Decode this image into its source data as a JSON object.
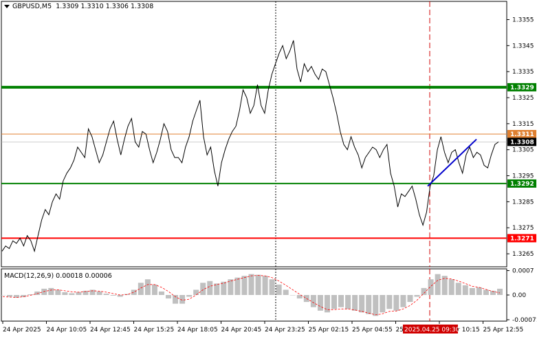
{
  "header": {
    "symbol_tf": "GBPUSD,M5",
    "ohlc": "1.3309 1.3310 1.3306 1.3308"
  },
  "macd": {
    "label": "MACD(12,26,9) 0.00018 0.00006",
    "axis_labels": [
      "0.0007",
      "0.00",
      "-0.00071"
    ]
  },
  "colors": {
    "price_line": "#000000",
    "support_level": "#008000",
    "resistance_level": "#ff0000",
    "current_price_level": "#e08030",
    "trend_line": "#0000cc",
    "event_marker": "#d00000",
    "macd_hist": "#c0c0c0",
    "macd_signal": "#ff0000"
  },
  "time_axis": {
    "labels": [
      "24 Apr 2025",
      "24 Apr 10:05",
      "24 Apr 12:45",
      "24 Apr 15:25",
      "24 Apr 18:05",
      "24 Apr 20:45",
      "24 Apr 23:25",
      "25 Apr 02:15",
      "25 Apr 04:55",
      "25 Apr 07:35",
      "25 Apr 10:15",
      "25 Apr 12:55"
    ],
    "highlight": "2025.04.25 09:30"
  },
  "chart_data": {
    "type": "line",
    "symbol": "GBPUSD",
    "timeframe": "M5",
    "price_ticks": [
      "1.3355",
      "1.3345",
      "1.3335",
      "1.3325",
      "1.3315",
      "1.3305",
      "1.3295",
      "1.3285",
      "1.3275",
      "1.3265"
    ],
    "price_tags": [
      {
        "text": "1.3329",
        "value": 1.3329,
        "color": "#008000"
      },
      {
        "text": "1.3311",
        "value": 1.3311,
        "color": "#e08030"
      },
      {
        "text": "1.3308",
        "value": 1.3308,
        "color": "#000000"
      },
      {
        "text": "1.3292",
        "value": 1.3292,
        "color": "#008000"
      },
      {
        "text": "1.3271",
        "value": 1.3271,
        "color": "#ff0000"
      }
    ],
    "levels": [
      {
        "value": 1.3329,
        "color": "#008000",
        "width": 4
      },
      {
        "value": 1.3311,
        "color": "#e08030",
        "width": 1
      },
      {
        "value": 1.3292,
        "color": "#008000",
        "width": 2
      },
      {
        "value": 1.3271,
        "color": "#ff0000",
        "width": 2
      }
    ],
    "ylim": [
      1.326,
      1.3362
    ],
    "series": [
      {
        "values": [
          1.3266,
          1.3268,
          1.3267,
          1.327,
          1.3269,
          1.3271,
          1.3268,
          1.3272,
          1.327,
          1.3266,
          1.3272,
          1.3278,
          1.3282,
          1.328,
          1.3285,
          1.3288,
          1.3286,
          1.3293,
          1.3296,
          1.3298,
          1.3301,
          1.3306,
          1.3304,
          1.3302,
          1.3313,
          1.331,
          1.3305,
          1.33,
          1.3303,
          1.3308,
          1.3313,
          1.3316,
          1.3309,
          1.3303,
          1.3309,
          1.3314,
          1.3317,
          1.3308,
          1.3306,
          1.3312,
          1.3311,
          1.3305,
          1.33,
          1.3304,
          1.3309,
          1.3315,
          1.3312,
          1.3305,
          1.3302,
          1.3302,
          1.33,
          1.3306,
          1.331,
          1.3316,
          1.332,
          1.3324,
          1.331,
          1.3303,
          1.3306,
          1.3297,
          1.3291,
          1.33,
          1.3305,
          1.3309,
          1.3312,
          1.3314,
          1.332,
          1.3328,
          1.3325,
          1.3319,
          1.3322,
          1.333,
          1.3322,
          1.3319,
          1.3328,
          1.3334,
          1.3338,
          1.3342,
          1.3345,
          1.334,
          1.3343,
          1.3347,
          1.3336,
          1.3331,
          1.3338,
          1.3335,
          1.3337,
          1.3334,
          1.3332,
          1.3336,
          1.3335,
          1.333,
          1.3325,
          1.3319,
          1.3312,
          1.3307,
          1.3305,
          1.331,
          1.3306,
          1.3303,
          1.3298,
          1.3302,
          1.3304,
          1.3306,
          1.3305,
          1.3302,
          1.3305,
          1.3307,
          1.3296,
          1.3291,
          1.3283,
          1.3288,
          1.3287,
          1.3289,
          1.3291,
          1.3286,
          1.328,
          1.3276,
          1.3281,
          1.3291,
          1.3295,
          1.3305,
          1.331,
          1.3304,
          1.33,
          1.3304,
          1.3305,
          1.33,
          1.3296,
          1.3303,
          1.3306,
          1.3302,
          1.3304,
          1.3303,
          1.3299,
          1.3298,
          1.3303,
          1.3307,
          1.3308
        ]
      },
      {
        "name": "trend",
        "values": [
          1.3291,
          1.3309
        ]
      }
    ],
    "macd": {
      "histogram": [
        0.0,
        -5e-05,
        -8e-05,
        -6e-05,
        2e-05,
        0.0001,
        0.00018,
        0.0002,
        0.00015,
        8e-05,
        5e-05,
        8e-05,
        0.00012,
        0.00015,
        0.0001,
        4e-05,
        -2e-05,
        -5e-05,
        3e-05,
        0.00015,
        0.00035,
        0.00045,
        0.0003,
        0.0001,
        -0.0001,
        -0.00025,
        -0.00025,
        -5e-05,
        0.00015,
        0.00035,
        0.0004,
        0.00033,
        0.00038,
        0.00045,
        0.0005,
        0.00055,
        0.0006,
        0.00058,
        0.00055,
        0.00045,
        0.0003,
        0.00015,
        0.0,
        -0.0001,
        -0.0002,
        -0.00035,
        -0.00045,
        -0.0005,
        -0.0004,
        -0.00035,
        -0.0004,
        -0.00045,
        -0.0005,
        -0.00055,
        -0.0006,
        -0.0005,
        -0.0004,
        -0.00045,
        -0.00035,
        -0.0002,
        -5e-05,
        0.0002,
        0.00045,
        0.0006,
        0.00055,
        0.00045,
        0.00035,
        0.00028,
        0.0002,
        0.00022,
        0.00015,
        0.00012,
        0.00018
      ],
      "signal": [
        -5e-05,
        -6e-05,
        -7e-05,
        -5e-05,
        -1e-05,
        4e-05,
        0.0001,
        0.00014,
        0.00015,
        0.00012,
        9e-05,
        8e-05,
        0.0001,
        0.00012,
        0.00011,
        8e-05,
        4e-05,
        0.0,
        1e-05,
        8e-05,
        0.0002,
        0.0003,
        0.0003,
        0.00022,
        0.0001,
        -5e-05,
        -0.00015,
        -0.00012,
        0.0,
        0.00015,
        0.00025,
        0.0003,
        0.00034,
        0.0004,
        0.00045,
        0.0005,
        0.00055,
        0.00056,
        0.00055,
        0.0005,
        0.0004,
        0.00028,
        0.00015,
        2e-05,
        -0.0001,
        -0.00022,
        -0.00033,
        -0.00042,
        -0.00042,
        -0.0004,
        -0.0004,
        -0.00043,
        -0.00047,
        -0.00052,
        -0.00057,
        -0.00054,
        -0.00047,
        -0.00046,
        -0.0004,
        -0.0003,
        -0.00015,
        5e-05,
        0.00025,
        0.00042,
        0.00048,
        0.00046,
        0.0004,
        0.00033,
        0.00025,
        0.00022,
        0.00016,
        0.0001,
        6e-05
      ],
      "ylim": [
        -0.00075,
        0.00075
      ]
    }
  }
}
